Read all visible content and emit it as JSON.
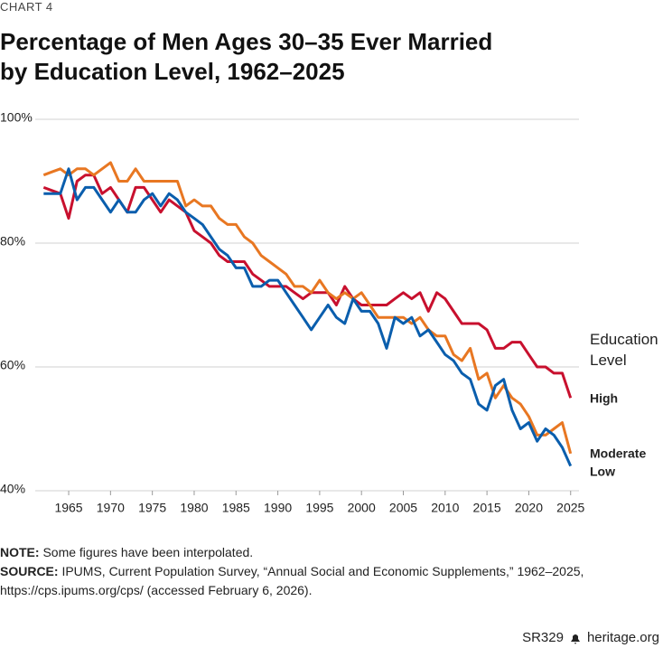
{
  "chart_data": {
    "type": "line",
    "chart_number": "CHART 4",
    "title": "Percentage of Men Ages 30–35 Ever Married by Education Level, 1962–2025",
    "legend_title": "Education Level",
    "x": [
      1962,
      1963,
      1964,
      1965,
      1966,
      1967,
      1968,
      1969,
      1970,
      1971,
      1972,
      1973,
      1974,
      1975,
      1976,
      1977,
      1978,
      1979,
      1980,
      1981,
      1982,
      1983,
      1984,
      1985,
      1986,
      1987,
      1988,
      1989,
      1990,
      1991,
      1992,
      1993,
      1994,
      1995,
      1996,
      1997,
      1998,
      1999,
      2000,
      2001,
      2002,
      2003,
      2004,
      2005,
      2006,
      2007,
      2008,
      2009,
      2010,
      2011,
      2012,
      2013,
      2014,
      2015,
      2016,
      2017,
      2018,
      2019,
      2020,
      2021,
      2022,
      2023,
      2024,
      2025
    ],
    "series": [
      {
        "name": "High",
        "color": "#c8102e",
        "values": [
          89,
          88.5,
          88,
          84,
          90,
          91,
          91,
          88,
          89,
          87,
          85,
          89,
          89,
          87,
          85,
          87,
          86,
          85,
          82,
          81,
          80,
          78,
          77,
          77,
          77,
          75,
          74,
          73,
          73,
          73,
          72,
          71,
          72,
          72,
          72,
          70,
          73,
          71,
          70,
          70,
          70,
          70,
          71,
          72,
          71,
          72,
          69,
          72,
          71,
          69,
          67,
          67,
          67,
          66,
          63,
          63,
          64,
          64,
          62,
          60,
          60,
          59,
          59,
          55
        ]
      },
      {
        "name": "Moderate",
        "color": "#e87722",
        "values": [
          91,
          91.5,
          92,
          91,
          92,
          92,
          91,
          92,
          93,
          90,
          90,
          92,
          90,
          90,
          90,
          90,
          90,
          86,
          87,
          86,
          86,
          84,
          83,
          83,
          81,
          80,
          78,
          77,
          76,
          75,
          73,
          73,
          72,
          74,
          72,
          71,
          72,
          71,
          72,
          70,
          68,
          68,
          68,
          68,
          67,
          68,
          66,
          65,
          65,
          62,
          61,
          63,
          58,
          59,
          55,
          57,
          55,
          54,
          52,
          49,
          49,
          50,
          51,
          46
        ]
      },
      {
        "name": "Low",
        "color": "#0a5ead",
        "values": [
          88,
          88,
          88,
          92,
          87,
          89,
          89,
          87,
          85,
          87,
          85,
          85,
          87,
          88,
          86,
          88,
          87,
          85,
          84,
          83,
          81,
          79,
          78,
          76,
          76,
          73,
          73,
          74,
          74,
          72,
          70,
          68,
          66,
          68,
          70,
          68,
          67,
          71,
          69,
          69,
          67,
          63,
          68,
          67,
          68,
          65,
          66,
          64,
          62,
          61,
          59,
          58,
          54,
          53,
          57,
          58,
          53,
          50,
          51,
          48,
          50,
          49,
          47,
          44
        ]
      }
    ],
    "xlim": [
      1961,
      2026
    ],
    "xticks": [
      1965,
      1970,
      1975,
      1980,
      1985,
      1990,
      1995,
      2000,
      2005,
      2010,
      2015,
      2020,
      2025
    ],
    "ylim": [
      40,
      100
    ],
    "yticks": [
      {
        "value": 40,
        "label": "40%"
      },
      {
        "value": 60,
        "label": "60%"
      },
      {
        "value": 80,
        "label": "80%"
      },
      {
        "value": 100,
        "label": "100%"
      }
    ],
    "grid": true,
    "note_label": "NOTE:",
    "note": "Some figures have been interpolated.",
    "source_label": "SOURCE:",
    "source": "IPUMS, Current Population Survey, “Annual Social and Economic Supplements,”  1962–2025, https://cps.ipums.org/cps/ (accessed February 6, 2026).",
    "report": "SR329",
    "site": "heritage.org"
  }
}
